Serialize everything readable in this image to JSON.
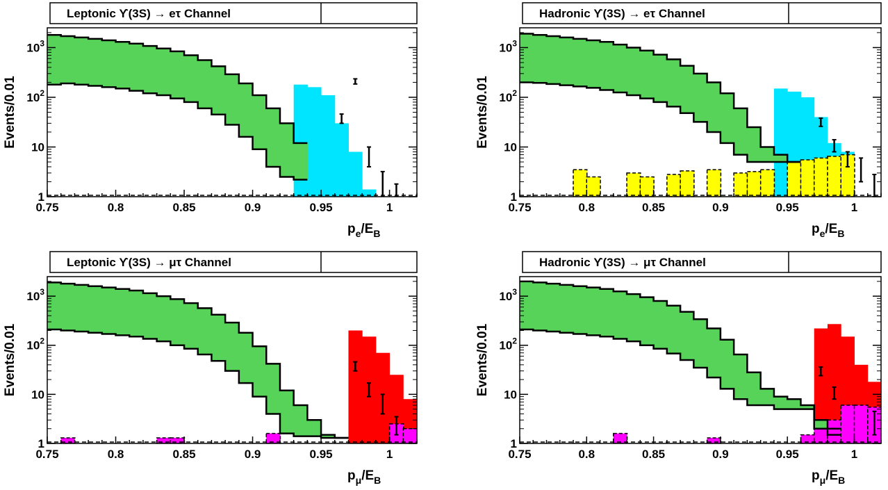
{
  "colors": {
    "background_band": "#57d35a",
    "signal_e": "#00e5ff",
    "signal_mu": "#ff0000",
    "bkg_yellow": "#ffff00",
    "bkg_magenta": "#ff00ff",
    "line": "#000000"
  },
  "chart_data": [
    {
      "type": "histogram",
      "title": "Leptonic ϒ(3S) → eτ Channel",
      "xlabel": "p",
      "xlabel_sub": "e",
      "xlabel_tail": "/E",
      "xlabel_tail_sub": "B",
      "ylabel": "Events/0.01",
      "x_ticks": [
        "0.75",
        "0.8",
        "0.85",
        "0.9",
        "0.95",
        "1"
      ],
      "y_ticks": [
        "1",
        "10",
        "10",
        "10"
      ],
      "y_tick_exponents": [
        "",
        "",
        "2",
        "3"
      ],
      "xlim": [
        0.75,
        1.02
      ],
      "ylim": [
        1,
        2500
      ],
      "log_y": true,
      "bin_edges_start": 0.75,
      "bin_width": 0.01,
      "band_upper": [
        1800,
        1700,
        1600,
        1500,
        1400,
        1300,
        1200,
        1080,
        960,
        840,
        700,
        560,
        420,
        290,
        190,
        110,
        60,
        30,
        12
      ],
      "band_lower": [
        180,
        190,
        180,
        170,
        160,
        150,
        135,
        120,
        110,
        95,
        80,
        60,
        45,
        28,
        16,
        9,
        4,
        2.5,
        2.2
      ],
      "signal_upper": [
        0,
        0,
        0,
        0,
        0,
        0,
        0,
        0,
        0,
        0,
        0,
        0,
        0,
        0,
        0,
        0,
        0,
        0,
        180,
        160,
        110,
        30,
        8,
        1.4
      ],
      "data_points": [
        {
          "x": 0.975,
          "y": 210,
          "err": 25
        },
        {
          "x": 0.965,
          "y": 38,
          "err": 8
        },
        {
          "x": 0.985,
          "y": 7,
          "err": 3
        },
        {
          "x": 0.995,
          "y": 2,
          "err": 1.2
        },
        {
          "x": 1.005,
          "y": 1.2,
          "err": 0.6
        }
      ],
      "extra_bkg": null
    },
    {
      "type": "histogram",
      "title": "Hadronic ϒ(3S) → eτ Channel",
      "xlabel": "p",
      "xlabel_sub": "e",
      "xlabel_tail": "/E",
      "xlabel_tail_sub": "B",
      "ylabel": "Events/0.01",
      "x_ticks": [
        "0.75",
        "0.8",
        "0.85",
        "0.9",
        "0.95",
        "1"
      ],
      "y_ticks": [
        "1",
        "10",
        "10",
        "10"
      ],
      "y_tick_exponents": [
        "",
        "",
        "2",
        "3"
      ],
      "xlim": [
        0.75,
        1.02
      ],
      "ylim": [
        1,
        2500
      ],
      "log_y": true,
      "bin_edges_start": 0.75,
      "bin_width": 0.01,
      "band_upper": [
        1900,
        1800,
        1700,
        1600,
        1500,
        1400,
        1300,
        1150,
        1000,
        870,
        720,
        580,
        430,
        300,
        200,
        120,
        60,
        25,
        10,
        7,
        5
      ],
      "band_lower": [
        200,
        195,
        185,
        175,
        165,
        155,
        140,
        125,
        110,
        95,
        80,
        65,
        48,
        32,
        20,
        12,
        7,
        5,
        5,
        5,
        5
      ],
      "signal_upper": [
        0,
        0,
        0,
        0,
        0,
        0,
        0,
        0,
        0,
        0,
        0,
        0,
        0,
        0,
        0,
        0,
        0,
        0,
        0,
        150,
        130,
        100,
        40,
        12,
        8
      ],
      "data_points": [
        {
          "x": 0.975,
          "y": 32,
          "err": 6
        },
        {
          "x": 0.985,
          "y": 11,
          "err": 3
        },
        {
          "x": 0.995,
          "y": 6,
          "err": 2
        },
        {
          "x": 1.005,
          "y": 4,
          "err": 2
        },
        {
          "x": 1.015,
          "y": 1.8,
          "err": 1
        }
      ],
      "extra_bkg": {
        "color_key": "bkg_yellow",
        "bin_edges_start": 0.79,
        "values": [
          3.5,
          2.5,
          0,
          0,
          3.0,
          2.5,
          0,
          2.8,
          3.3,
          0,
          3.5,
          0,
          3.0,
          3.2,
          3.5,
          0,
          5.0,
          5.5,
          6.0,
          6.5,
          7.0
        ]
      }
    },
    {
      "type": "histogram",
      "title": "Leptonic ϒ(3S) → μτ Channel",
      "xlabel": "p",
      "xlabel_sub": "μ",
      "xlabel_tail": "/E",
      "xlabel_tail_sub": "B",
      "ylabel": "Events/0.01",
      "x_ticks": [
        "0.75",
        "0.8",
        "0.85",
        "0.9",
        "0.95",
        "1"
      ],
      "y_ticks": [
        "1",
        "10",
        "10",
        "10"
      ],
      "y_tick_exponents": [
        "",
        "",
        "2",
        "3"
      ],
      "xlim": [
        0.75,
        1.02
      ],
      "ylim": [
        1,
        2500
      ],
      "log_y": true,
      "bin_edges_start": 0.75,
      "bin_width": 0.01,
      "band_upper": [
        1900,
        1800,
        1700,
        1600,
        1500,
        1400,
        1300,
        1150,
        1000,
        870,
        720,
        570,
        420,
        290,
        180,
        95,
        42,
        12,
        6,
        3,
        1.5,
        1.3
      ],
      "band_lower": [
        210,
        200,
        190,
        180,
        170,
        160,
        150,
        135,
        120,
        100,
        85,
        65,
        48,
        30,
        17,
        9,
        4,
        1.6,
        1.4,
        1.4,
        1.3,
        1.3
      ],
      "signal_upper": [
        0,
        0,
        0,
        0,
        0,
        0,
        0,
        0,
        0,
        0,
        0,
        0,
        0,
        0,
        0,
        0,
        0,
        0,
        0,
        0,
        0,
        0,
        200,
        150,
        70,
        25,
        8,
        3,
        1.2
      ],
      "data_points": [
        {
          "x": 0.975,
          "y": 38,
          "err": 8
        },
        {
          "x": 0.985,
          "y": 13,
          "err": 4
        },
        {
          "x": 0.995,
          "y": 7,
          "err": 3
        },
        {
          "x": 1.005,
          "y": 2.5,
          "err": 1
        }
      ],
      "extra_bkg": {
        "color_key": "bkg_magenta",
        "bin_edges_start": 0.76,
        "values": [
          1.3,
          0,
          0,
          0,
          0,
          0,
          0,
          1.3,
          1.3,
          0,
          0,
          0,
          0,
          0,
          0,
          1.6,
          0,
          0,
          0,
          0,
          0,
          0,
          0,
          0,
          2.5,
          2.0,
          1.5
        ]
      }
    },
    {
      "type": "histogram",
      "title": "Hadronic ϒ(3S) → μτ Channel",
      "xlabel": "p",
      "xlabel_sub": "μ",
      "xlabel_tail": "/E",
      "xlabel_tail_sub": "B",
      "ylabel": "Events/0.01",
      "x_ticks": [
        "0.75",
        "0.8",
        "0.85",
        "0.9",
        "0.95",
        "1"
      ],
      "y_ticks": [
        "1",
        "10",
        "10",
        "10"
      ],
      "y_tick_exponents": [
        "",
        "",
        "2",
        "3"
      ],
      "xlim": [
        0.75,
        1.02
      ],
      "ylim": [
        1,
        2500
      ],
      "log_y": true,
      "bin_edges_start": 0.75,
      "bin_width": 0.01,
      "band_upper": [
        2000,
        1900,
        1800,
        1700,
        1600,
        1500,
        1400,
        1250,
        1100,
        950,
        800,
        640,
        480,
        340,
        220,
        130,
        65,
        28,
        13,
        9,
        8,
        6,
        3,
        2
      ],
      "band_lower": [
        210,
        200,
        190,
        180,
        170,
        160,
        150,
        135,
        120,
        100,
        85,
        68,
        50,
        35,
        22,
        13,
        8,
        6,
        6,
        5,
        5,
        5,
        2,
        1.5
      ],
      "signal_upper": [
        0,
        0,
        0,
        0,
        0,
        0,
        0,
        0,
        0,
        0,
        0,
        0,
        0,
        0,
        0,
        0,
        0,
        0,
        0,
        0,
        0,
        0,
        220,
        270,
        150,
        40,
        18,
        12,
        8
      ],
      "data_points": [
        {
          "x": 0.975,
          "y": 30,
          "err": 6
        },
        {
          "x": 0.985,
          "y": 11,
          "err": 3
        },
        {
          "x": 1.015,
          "y": 3,
          "err": 1.5
        }
      ],
      "extra_bkg": {
        "color_key": "bkg_magenta",
        "bin_edges_start": 0.82,
        "values": [
          1.6,
          0,
          0,
          0,
          0,
          0,
          0,
          1.3,
          0,
          0,
          0,
          0,
          0,
          0,
          1.5,
          2.0,
          3.0,
          6.0,
          6.0,
          5.5,
          3.5
        ]
      }
    }
  ]
}
